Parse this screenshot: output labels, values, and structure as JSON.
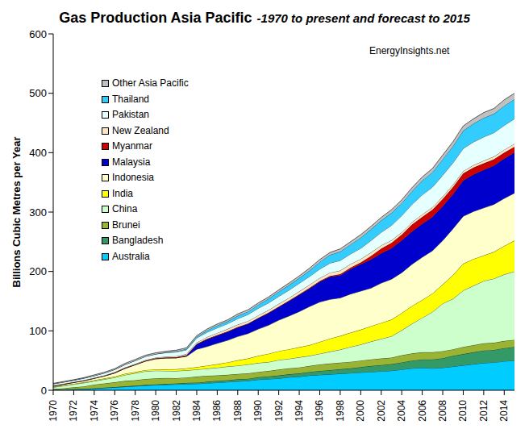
{
  "chart_data": {
    "type": "area",
    "title": "Gas Production Asia Pacific",
    "subtitle": "-1970 to present and forecast to 2015",
    "annotation": "EnergyInsights.net",
    "y_label": "Billions Cubic Metres per Year",
    "x": [
      1970,
      1971,
      1972,
      1973,
      1974,
      1975,
      1976,
      1977,
      1978,
      1979,
      1980,
      1981,
      1982,
      1983,
      1984,
      1985,
      1986,
      1987,
      1988,
      1989,
      1990,
      1991,
      1992,
      1993,
      1994,
      1995,
      1996,
      1997,
      1998,
      1999,
      2000,
      2001,
      2002,
      2003,
      2004,
      2005,
      2006,
      2007,
      2008,
      2009,
      2010,
      2011,
      2012,
      2013,
      2014,
      2015
    ],
    "xlim": [
      1970,
      2015
    ],
    "xticks": [
      1970,
      1972,
      1974,
      1976,
      1978,
      1980,
      1982,
      1984,
      1986,
      1988,
      1990,
      1992,
      1994,
      1996,
      1998,
      2000,
      2002,
      2004,
      2006,
      2008,
      2010,
      2012,
      2014
    ],
    "ylim": [
      0,
      600
    ],
    "yticks": [
      0,
      100,
      200,
      300,
      400,
      500,
      600
    ],
    "stacked": true,
    "grid": false,
    "legend": "top-left",
    "series": [
      {
        "name": "Australia",
        "color": "#00CCFF",
        "values": [
          1,
          1.5,
          2,
          2.5,
          3,
          4,
          5,
          6,
          7,
          8,
          9,
          9.5,
          10,
          10.5,
          11,
          12,
          13,
          14,
          15,
          16,
          18,
          19,
          20,
          22,
          23,
          25,
          26,
          27,
          28,
          29,
          30,
          31,
          32,
          33,
          35,
          37,
          38,
          37,
          38,
          40,
          42,
          44,
          46,
          47,
          49,
          50
        ]
      },
      {
        "name": "Bangladesh",
        "color": "#339966",
        "values": [
          0,
          0,
          0,
          0,
          0.5,
          0.5,
          0.5,
          0.8,
          0.8,
          1,
          1,
          1.2,
          1.5,
          2,
          2,
          2.5,
          3,
          3,
          3.5,
          3.5,
          4,
          4.5,
          5,
          5,
          5.5,
          6,
          6.5,
          7,
          7.5,
          8,
          9,
          10,
          10.5,
          11,
          12,
          13,
          14,
          15,
          16,
          18,
          19,
          20,
          21,
          21,
          22,
          23
        ]
      },
      {
        "name": "Brunei",
        "color": "#99B433",
        "values": [
          1,
          2,
          3,
          4,
          6,
          7,
          8,
          9,
          9,
          10,
          10,
          10,
          9,
          9,
          10,
          10,
          9,
          9,
          9,
          9,
          9,
          9,
          10,
          10,
          10,
          10,
          11,
          11,
          11,
          11,
          11,
          11,
          11,
          11,
          12,
          12,
          12,
          12,
          12,
          11,
          12,
          12,
          12,
          12,
          12,
          12
        ]
      },
      {
        "name": "China",
        "color": "#CCFFCC",
        "values": [
          3,
          4,
          5,
          6,
          6,
          7,
          8,
          10,
          12,
          13,
          13,
          12,
          12,
          12,
          12,
          12,
          13,
          14,
          14,
          15,
          15,
          15,
          16,
          16,
          17,
          17,
          18,
          20,
          22,
          25,
          27,
          30,
          33,
          36,
          42,
          50,
          58,
          68,
          80,
          85,
          95,
          100,
          105,
          108,
          112,
          115
        ]
      },
      {
        "name": "India",
        "color": "#FFFF00",
        "values": [
          1,
          1,
          1,
          1,
          1.5,
          1.5,
          1.5,
          2,
          2,
          2,
          2,
          2.5,
          3,
          3.5,
          4,
          5,
          6,
          7,
          9,
          10,
          12,
          14,
          15,
          16,
          17,
          18,
          20,
          22,
          23,
          24,
          25,
          26,
          27,
          28,
          29,
          30,
          30,
          31,
          32,
          40,
          45,
          45,
          43,
          45,
          48,
          52
        ]
      },
      {
        "name": "Indonesia",
        "color": "#FFFFCC",
        "values": [
          1,
          1.5,
          2,
          2.5,
          3,
          4,
          6,
          9,
          12,
          15,
          18,
          19,
          19,
          20,
          30,
          32,
          35,
          37,
          40,
          42,
          45,
          48,
          52,
          56,
          60,
          65,
          67,
          66,
          64,
          65,
          65,
          64,
          67,
          68,
          68,
          70,
          72,
          72,
          74,
          78,
          80,
          80,
          80,
          80,
          80,
          80
        ]
      },
      {
        "name": "Malaysia",
        "color": "#0000CC",
        "values": [
          0,
          0,
          0,
          0,
          0,
          0,
          0,
          0,
          0,
          0,
          0,
          0,
          0,
          1,
          8,
          12,
          13,
          14,
          15,
          16,
          18,
          20,
          22,
          25,
          28,
          30,
          34,
          38,
          38,
          42,
          45,
          48,
          50,
          52,
          54,
          55,
          56,
          57,
          58,
          58,
          60,
          62,
          64,
          65,
          67,
          68
        ]
      },
      {
        "name": "Myanmar",
        "color": "#CC0000",
        "values": [
          0.5,
          0.5,
          0.5,
          0.5,
          0.5,
          0.5,
          0.8,
          0.8,
          0.8,
          1,
          1,
          1,
          1,
          1,
          1,
          1,
          1,
          1,
          1,
          1,
          1,
          1,
          1,
          1,
          1,
          1.5,
          1.5,
          1.5,
          2,
          2.5,
          3,
          6,
          8,
          9,
          10,
          12,
          12,
          12,
          12,
          12,
          12,
          12,
          11,
          11,
          10,
          10
        ]
      },
      {
        "name": "New Zealand",
        "color": "#FFE4C4",
        "values": [
          0.2,
          0.2,
          0.3,
          0.3,
          0.4,
          0.5,
          0.6,
          0.7,
          0.8,
          1,
          1,
          1.5,
          2,
          2,
          2.5,
          3,
          3.5,
          4,
          4,
          4,
          4,
          4.5,
          4.5,
          4.5,
          5,
          5,
          5,
          5.5,
          6,
          6,
          6,
          6,
          5.5,
          4.5,
          4,
          4,
          4,
          4,
          4,
          4,
          4,
          4,
          4.5,
          4.5,
          5,
          5
        ]
      },
      {
        "name": "Pakistan",
        "color": "#E6FFFF",
        "values": [
          3,
          3,
          3,
          3.5,
          3.5,
          4,
          4.5,
          5,
          5.5,
          6,
          6,
          6.5,
          7,
          7,
          7.5,
          8,
          8.5,
          9,
          10,
          11,
          12,
          12,
          12.5,
          13,
          13.5,
          14,
          15,
          16,
          17,
          17,
          18,
          20,
          22,
          25,
          28,
          30,
          33,
          34,
          36,
          37,
          38,
          39,
          40,
          40,
          41,
          42
        ]
      },
      {
        "name": "Thailand",
        "color": "#33CCFF",
        "values": [
          0,
          0,
          0,
          0,
          0,
          0,
          0,
          0,
          0,
          0,
          0,
          0.5,
          1,
          1.5,
          2,
          3,
          4,
          4,
          5,
          5,
          6,
          7,
          8,
          8.5,
          9,
          10,
          12,
          14,
          15,
          16,
          18,
          19,
          20,
          21,
          21,
          22,
          24,
          25,
          27,
          28,
          30,
          31,
          32,
          32,
          33,
          33
        ]
      },
      {
        "name": "Other Asia Pacific",
        "color": "#C0C0C0",
        "values": [
          1,
          1,
          1,
          1,
          1.5,
          1.5,
          1.5,
          2,
          2,
          2,
          2,
          2,
          2,
          2,
          2,
          2.5,
          2.5,
          2.5,
          3,
          3,
          3,
          3,
          3,
          3.5,
          3.5,
          4,
          4,
          4,
          4.5,
          4.5,
          5,
          5,
          5,
          5.5,
          5.5,
          6,
          6,
          6.5,
          7,
          7.5,
          8,
          8,
          9,
          9,
          10,
          10
        ]
      }
    ]
  }
}
